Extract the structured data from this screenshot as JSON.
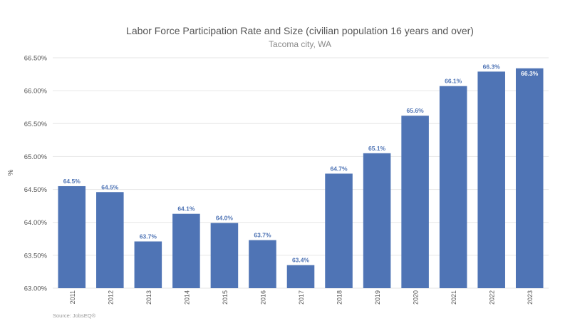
{
  "chart_data": {
    "type": "bar",
    "title": "Labor Force Participation Rate and Size (civilian population 16 years and over)",
    "subtitle": "Tacoma city, WA",
    "xlabel": "",
    "ylabel": "%",
    "categories": [
      "2011",
      "2012",
      "2013",
      "2014",
      "2015",
      "2016",
      "2017",
      "2018",
      "2019",
      "2020",
      "2021",
      "2022",
      "2023"
    ],
    "values": [
      64.55,
      64.46,
      63.71,
      64.13,
      63.99,
      63.73,
      63.35,
      64.74,
      65.05,
      65.62,
      66.07,
      66.29,
      66.34
    ],
    "data_labels": [
      "64.5%",
      "64.5%",
      "63.7%",
      "64.1%",
      "64.0%",
      "63.7%",
      "63.4%",
      "64.7%",
      "65.1%",
      "65.6%",
      "66.1%",
      "66.3%",
      "66.3%"
    ],
    "highlight_index": 12,
    "ylim": [
      63.0,
      66.5
    ],
    "yticks": [
      63.0,
      63.5,
      64.0,
      64.5,
      65.0,
      65.5,
      66.0,
      66.5
    ],
    "ytick_labels": [
      "63.00%",
      "63.50%",
      "64.00%",
      "64.50%",
      "65.00%",
      "65.50%",
      "66.00%",
      "66.50%"
    ],
    "grid": true,
    "legend": "none",
    "source": "Source: JobsEQ®",
    "colors": {
      "bar": "#4f74b5",
      "label": "#4f74b5",
      "highlight_label": "#ffffff",
      "grid": "#e6e6e6"
    }
  }
}
